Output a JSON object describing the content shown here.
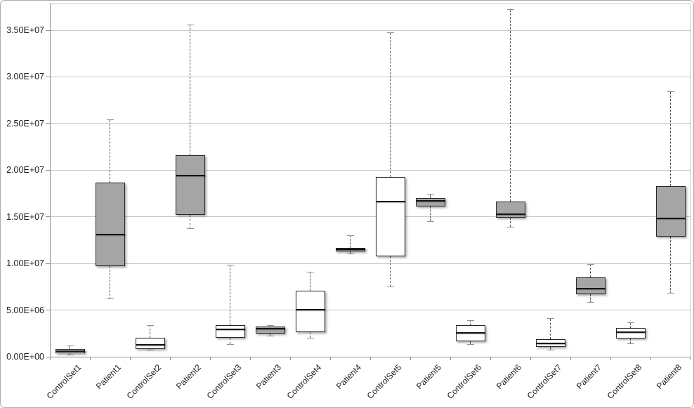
{
  "chart_data": {
    "type": "box",
    "title": "",
    "legend_visible": false,
    "grid": "horizontal",
    "y_axis": {
      "tick_labels": [
        "0.00E+00",
        "5.00E+06",
        "1.00E+07",
        "1.50E+07",
        "2.00E+07",
        "2.50E+07",
        "3.00E+07",
        "3.50E+07"
      ],
      "tick_values": [
        0,
        5000000,
        10000000,
        15000000,
        20000000,
        25000000,
        30000000,
        35000000
      ],
      "range_min": 0,
      "range_max": 35000000
    },
    "categories": [
      "ControlSet1",
      "Patient1",
      "ControlSet2",
      "Patient2",
      "ControlSet3",
      "Patient3",
      "ControlSet4",
      "Patient4",
      "ControlSet5",
      "Patient5",
      "ControlSet6",
      "Patient6",
      "ControlSet7",
      "Patient7",
      "ControlSet8",
      "Patient8"
    ],
    "boxes": [
      {
        "label": "ControlSet1",
        "series": "control",
        "min": 200000,
        "q1": 350000,
        "median": 600000,
        "q3": 850000,
        "max": 1200000
      },
      {
        "label": "Patient1",
        "series": "patient",
        "min": 6200000,
        "q1": 9700000,
        "median": 13100000,
        "q3": 18700000,
        "max": 25400000
      },
      {
        "label": "ControlSet2",
        "series": "control",
        "min": 750000,
        "q1": 850000,
        "median": 1250000,
        "q3": 2000000,
        "max": 3350000
      },
      {
        "label": "Patient2",
        "series": "patient",
        "min": 13700000,
        "q1": 15200000,
        "median": 19400000,
        "q3": 21600000,
        "max": 35600000
      },
      {
        "label": "ControlSet3",
        "series": "control",
        "min": 1350000,
        "q1": 2050000,
        "median": 2900000,
        "q3": 3350000,
        "max": 9850000
      },
      {
        "label": "Patient3",
        "series": "patient",
        "min": 2200000,
        "q1": 2500000,
        "median": 3000000,
        "q3": 3200000,
        "max": 3350000
      },
      {
        "label": "ControlSet4",
        "series": "control",
        "min": 2000000,
        "q1": 2650000,
        "median": 5050000,
        "q3": 7100000,
        "max": 9100000
      },
      {
        "label": "Patient4",
        "series": "patient",
        "min": 11000000,
        "q1": 11300000,
        "median": 11500000,
        "q3": 11700000,
        "max": 13000000
      },
      {
        "label": "ControlSet5",
        "series": "control",
        "min": 7500000,
        "q1": 10800000,
        "median": 16600000,
        "q3": 19300000,
        "max": 34700000
      },
      {
        "label": "Patient5",
        "series": "patient",
        "min": 14500000,
        "q1": 16100000,
        "median": 16700000,
        "q3": 17000000,
        "max": 17400000
      },
      {
        "label": "ControlSet6",
        "series": "control",
        "min": 1350000,
        "q1": 1650000,
        "median": 2550000,
        "q3": 3400000,
        "max": 3900000
      },
      {
        "label": "Patient6",
        "series": "patient",
        "min": 13900000,
        "q1": 14900000,
        "median": 15300000,
        "q3": 16600000,
        "max": 37200000
      },
      {
        "label": "ControlSet7",
        "series": "control",
        "min": 750000,
        "q1": 1050000,
        "median": 1400000,
        "q3": 1900000,
        "max": 4100000
      },
      {
        "label": "Patient7",
        "series": "patient",
        "min": 5800000,
        "q1": 6700000,
        "median": 7300000,
        "q3": 8500000,
        "max": 9900000
      },
      {
        "label": "ControlSet8",
        "series": "control",
        "min": 1400000,
        "q1": 1950000,
        "median": 2650000,
        "q3": 3050000,
        "max": 3650000
      },
      {
        "label": "Patient8",
        "series": "patient",
        "min": 6800000,
        "q1": 12900000,
        "median": 14800000,
        "q3": 18300000,
        "max": 28400000
      }
    ],
    "colors": {
      "control_fill": "#ffffff",
      "patient_fill": "#a5a5a5",
      "box_border": "#262626",
      "median": "#141414",
      "whisker": "#4d4d4d",
      "whisker_cap": "#949494",
      "gridline": "#c8c8c8",
      "axis": "#8f8f8f",
      "frame": "#c6c6c6",
      "label_text": "#1c1c1c",
      "background": "#ffffff"
    }
  }
}
